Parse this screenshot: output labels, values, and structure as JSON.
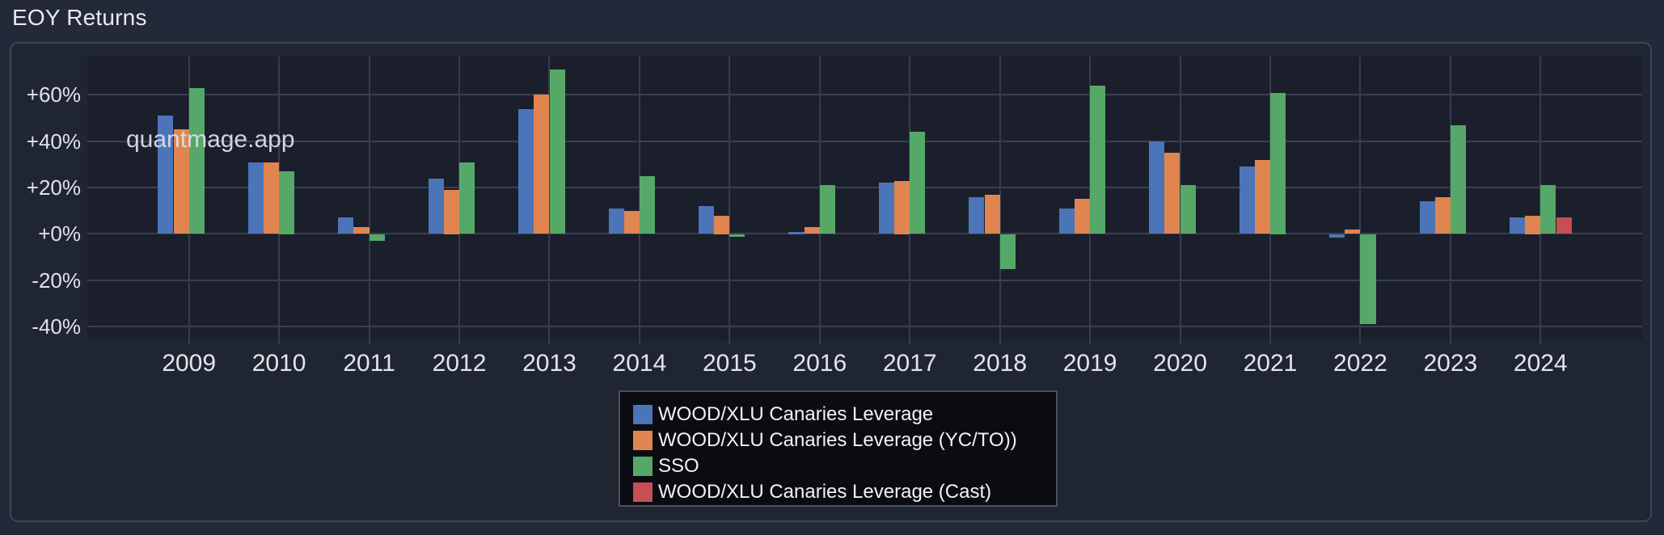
{
  "page": {
    "title": "EOY Returns",
    "watermark": "quantmage.app"
  },
  "chart_data": {
    "type": "bar",
    "title": "EOY Returns",
    "value_unit": "percent",
    "categories": [
      "2009",
      "2010",
      "2011",
      "2012",
      "2013",
      "2014",
      "2015",
      "2016",
      "2017",
      "2018",
      "2019",
      "2020",
      "2021",
      "2022",
      "2023",
      "2024"
    ],
    "series": [
      {
        "name": "WOOD/XLU Canaries Leverage",
        "color": "#4c74b9",
        "values": [
          51,
          31,
          7,
          24,
          54,
          11,
          12,
          1,
          22,
          16,
          11,
          40,
          29,
          -1.5,
          14,
          7
        ]
      },
      {
        "name": "WOOD/XLU Canaries Leverage (YC/TO))",
        "color": "#e0854f",
        "values": [
          45,
          31,
          3,
          19,
          60,
          10,
          8,
          3,
          23,
          17,
          15,
          35,
          32,
          2,
          16,
          8
        ]
      },
      {
        "name": "SSO",
        "color": "#56a868",
        "values": [
          63,
          27,
          -3,
          31,
          71,
          25,
          -1,
          21,
          44,
          -15,
          64,
          21,
          61,
          -39,
          47,
          21
        ]
      },
      {
        "name": "WOOD/XLU Canaries Leverage (Cast)",
        "color": "#c64f53",
        "values": [
          null,
          null,
          null,
          null,
          null,
          null,
          null,
          null,
          null,
          null,
          null,
          null,
          null,
          null,
          null,
          7
        ]
      }
    ],
    "y_ticks": [
      {
        "value": 60,
        "label": "+60%"
      },
      {
        "value": 40,
        "label": "+40%"
      },
      {
        "value": 20,
        "label": "+20%"
      },
      {
        "value": 0,
        "label": "+0%"
      },
      {
        "value": -20,
        "label": "-20%"
      },
      {
        "value": -40,
        "label": "-40%"
      }
    ],
    "ylim": [
      -45.5,
      76.5
    ],
    "grid": true,
    "legend_position": "bottom-center"
  }
}
